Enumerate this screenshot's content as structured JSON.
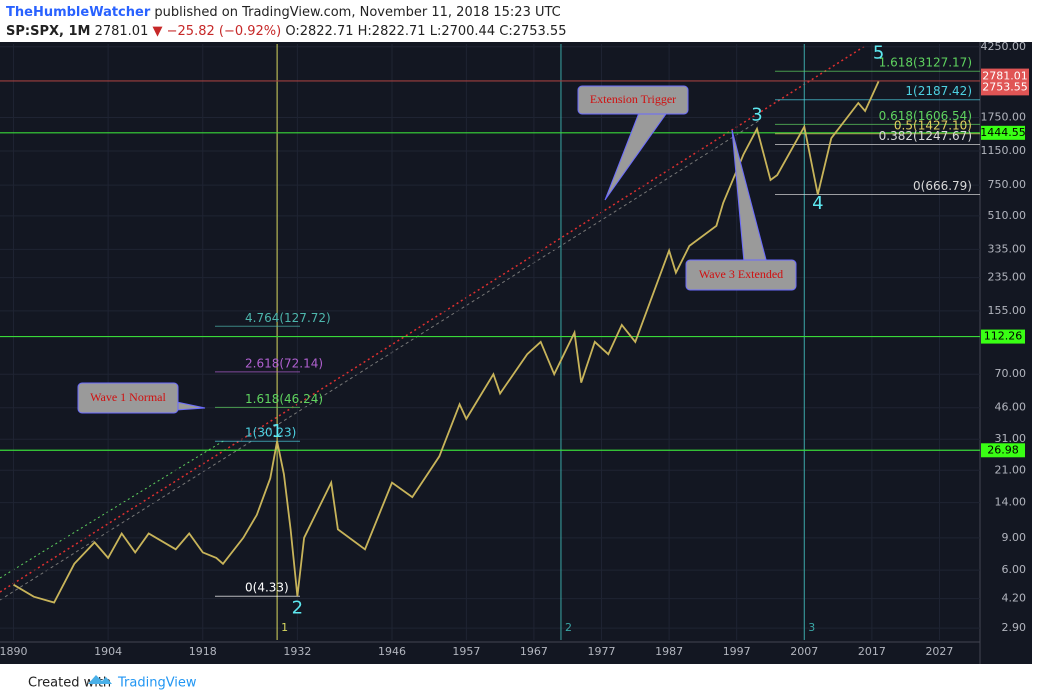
{
  "header": {
    "author": "TheHumbleWatcher",
    "published": "published on TradingView.com, November 11, 2018 15:23 UTC",
    "symbol": "SP:SPX, 1M",
    "last": "2781.01",
    "change": "▼ −25.82 (−0.92%)",
    "open": "O:2822.71",
    "high": "H:2822.71",
    "low": "L:2700.44",
    "close": "C:2753.55"
  },
  "footer": {
    "created": "Created with",
    "brand": "TradingView"
  },
  "chart_data": {
    "type": "line",
    "log_scale": true,
    "color": "#c8b45a",
    "x": [
      1890,
      1893,
      1896,
      1899,
      1902,
      1904,
      1906,
      1908,
      1910,
      1914,
      1916,
      1918,
      1920,
      1921,
      1924,
      1926,
      1928,
      1929,
      1930,
      1931,
      1932,
      1933,
      1937,
      1938,
      1942,
      1946,
      1949,
      1953,
      1956,
      1957,
      1961,
      1962,
      1966,
      1968,
      1970,
      1973,
      1974,
      1976,
      1978,
      1980,
      1982,
      1987,
      1988,
      1990,
      1994,
      1995,
      1998,
      2000,
      2002,
      2003,
      2007,
      2009,
      2011,
      2015,
      2016,
      2018
    ],
    "values": [
      5.0,
      4.3,
      4.0,
      6.5,
      8.5,
      7.0,
      9.5,
      7.5,
      9.5,
      7.8,
      9.5,
      7.5,
      7.0,
      6.5,
      9,
      12,
      19,
      30.23,
      20,
      10,
      4.33,
      9,
      18,
      10,
      7.8,
      18,
      15,
      25,
      48,
      40,
      70,
      55,
      90,
      105,
      70,
      118,
      63,
      105,
      90,
      130,
      105,
      330,
      250,
      350,
      450,
      600,
      1100,
      1520,
      800,
      850,
      1560,
      667,
      1350,
      2100,
      1900,
      2753.55
    ],
    "xlim": [
      1888,
      2033
    ],
    "ylim": [
      2.5,
      4400
    ],
    "xticks": [
      1890,
      1904,
      1918,
      1932,
      1946,
      1957,
      1967,
      1977,
      1987,
      1997,
      2007,
      2017,
      2027
    ],
    "yticks": [
      {
        "value": 4250,
        "label": "4250.00"
      },
      {
        "value": 1750,
        "label": "1750.00"
      },
      {
        "value": 1150,
        "label": "1150.00"
      },
      {
        "value": 750,
        "label": "750.00"
      },
      {
        "value": 510,
        "label": "510.00"
      },
      {
        "value": 335,
        "label": "335.00"
      },
      {
        "value": 235,
        "label": "235.00"
      },
      {
        "value": 155,
        "label": "155.00"
      },
      {
        "value": 70,
        "label": "70.00"
      },
      {
        "value": 46,
        "label": "46.00"
      },
      {
        "value": 31,
        "label": "31.00"
      },
      {
        "value": 21,
        "label": "21.00"
      },
      {
        "value": 14,
        "label": "14.00"
      },
      {
        "value": 9,
        "label": "9.00"
      },
      {
        "value": 6,
        "label": "6.00"
      },
      {
        "value": 4.2,
        "label": "4.20"
      },
      {
        "value": 2.9,
        "label": "2.90"
      }
    ],
    "levels": [
      1444.55,
      112.26,
      26.98
    ],
    "price_labels": [
      2781.01,
      2753.55
    ],
    "fib_right": [
      {
        "value": 3127.17,
        "label": "1.618(3127.17)",
        "color": "#5fd35f"
      },
      {
        "value": 2187.42,
        "label": "1(2187.42)",
        "color": "#4dd0e1"
      },
      {
        "value": 1606.54,
        "label": "0.618(1606.54)",
        "color": "#5fd35f"
      },
      {
        "value": 1427.1,
        "label": "0.5(1427.10)",
        "color": "#e0d060"
      },
      {
        "value": 1247.67,
        "label": "0.382(1247.67)",
        "color": "#d8d8d8"
      },
      {
        "value": 666.79,
        "label": "0(666.79)",
        "color": "#d8d8d8"
      }
    ],
    "fib_left": [
      {
        "value": 127.72,
        "label": "4.764(127.72)",
        "color": "#4db6ac"
      },
      {
        "value": 72.14,
        "label": "2.618(72.14)",
        "color": "#b060d0"
      },
      {
        "value": 46.24,
        "label": "1.618(46.24)",
        "color": "#5fd35f"
      },
      {
        "value": 30.23,
        "label": "1(30.23)",
        "color": "#4dd0e1"
      },
      {
        "value": 4.33,
        "label": "0(4.33)",
        "color": "#ffffff"
      }
    ],
    "waves": [
      {
        "label": "1",
        "x": 1929,
        "value": 34
      },
      {
        "label": "2",
        "x": 1932,
        "value": 3.7
      },
      {
        "label": "3",
        "x": 2000,
        "value": 1800
      },
      {
        "label": "4",
        "x": 2009,
        "value": 590
      },
      {
        "label": "5",
        "x": 2018,
        "value": 3900
      }
    ],
    "vlines": [
      {
        "x": 1929,
        "label": "1",
        "color": "#d8d860"
      },
      {
        "x": 1971,
        "label": "2",
        "color": "#3aa6a6"
      },
      {
        "x": 2007,
        "label": "3",
        "color": "#3aa6a6"
      }
    ],
    "callouts": [
      "Wave 1 Normal",
      "Extension Trigger",
      "Wave 3 Extended"
    ]
  }
}
